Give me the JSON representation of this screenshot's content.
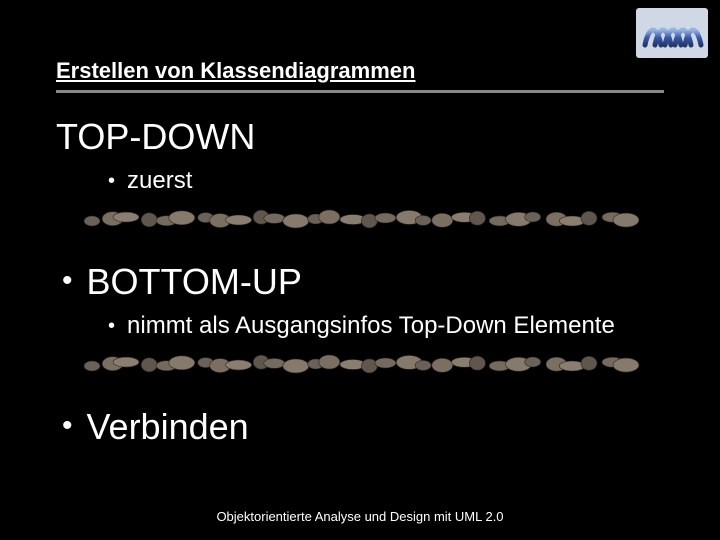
{
  "header": {
    "title": "Erstellen von Klassendiagrammen"
  },
  "content": {
    "topdown": {
      "title": "TOP-DOWN",
      "sub": "zuerst"
    },
    "bottomup": {
      "title": "BOTTOM-UP",
      "sub": "nimmt als Ausgangsinfos Top-Down Elemente"
    },
    "verbinden": {
      "title": "Verbinden"
    }
  },
  "footer": {
    "text": "Objektorientierte Analyse und Design mit UML 2.0"
  },
  "style": {
    "background_color": "#000000",
    "text_color": "#ffffff",
    "rule_color": "#888888",
    "title_fontsize": 22,
    "h1_fontsize": 36,
    "h2_fontsize": 36,
    "h3_fontsize": 24,
    "footer_fontsize": 13,
    "stone_colors": [
      "#6a6158",
      "#7b6f62",
      "#8a7e70",
      "#5f574e",
      "#746a5e",
      "#867a6c"
    ],
    "spring_bg": "#cfd8e4",
    "spring_coil": "#3a5aa8",
    "spring_highlight": "#9ab4e0"
  }
}
